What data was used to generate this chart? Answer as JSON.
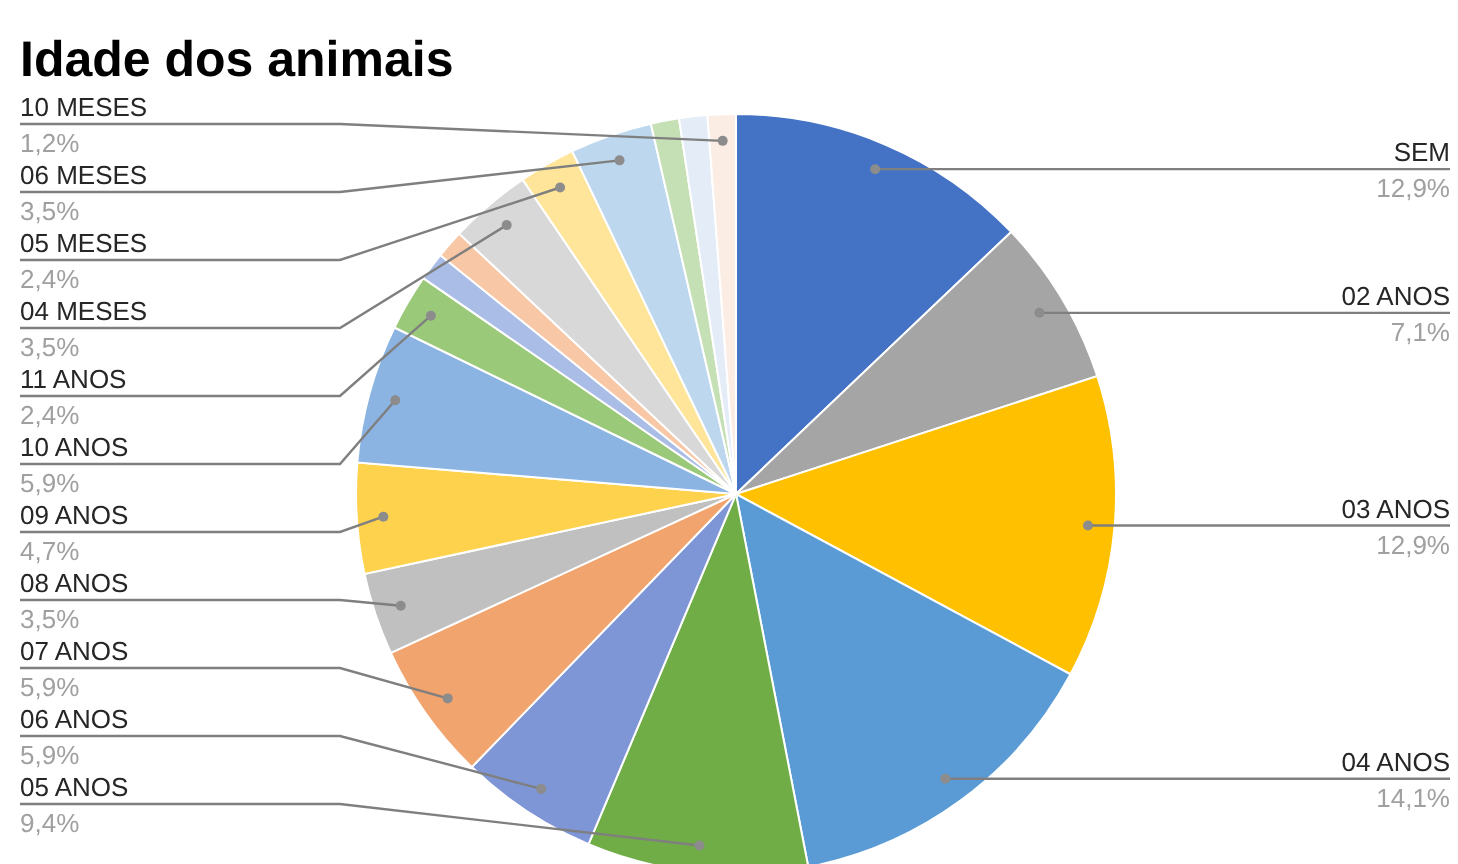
{
  "chart_data": {
    "type": "pie",
    "title": "Idade dos animais",
    "categories": [
      "SEM",
      "02 ANOS",
      "03 ANOS",
      "04 ANOS",
      "05 ANOS",
      "06 ANOS",
      "07 ANOS",
      "08 ANOS",
      "09 ANOS",
      "10 ANOS",
      "11 ANOS",
      null,
      null,
      "04 MESES",
      "05 MESES",
      "06 MESES",
      null,
      null,
      "10 MESES"
    ],
    "values": [
      12.9,
      7.1,
      12.9,
      14.1,
      9.4,
      5.9,
      5.9,
      3.5,
      4.7,
      5.9,
      2.4,
      1.2,
      1.2,
      3.5,
      2.4,
      3.5,
      1.2,
      1.2,
      1.2
    ],
    "value_labels": [
      "12,9%",
      "7,1%",
      "12,9%",
      "14,1%",
      "9,4%",
      "5,9%",
      "5,9%",
      "3,5%",
      "4,7%",
      "5,9%",
      "2,4%",
      null,
      null,
      "3,5%",
      "2,4%",
      "3,5%",
      null,
      null,
      "1,2%"
    ],
    "colors": [
      "#4472c4",
      "#a5a5a5",
      "#ffc000",
      "#5b9bd5",
      "#70ad47",
      "#7f96d6",
      "#f2a46e",
      "#c0c0c0",
      "#ffd24d",
      "#8cb4e2",
      "#9bc97a",
      "#a9bde6",
      "#f8c7a6",
      "#d8d8d8",
      "#fee59a",
      "#bdd7ee",
      "#c5e0b4",
      "#e4ecf7",
      "#fbede4"
    ]
  }
}
